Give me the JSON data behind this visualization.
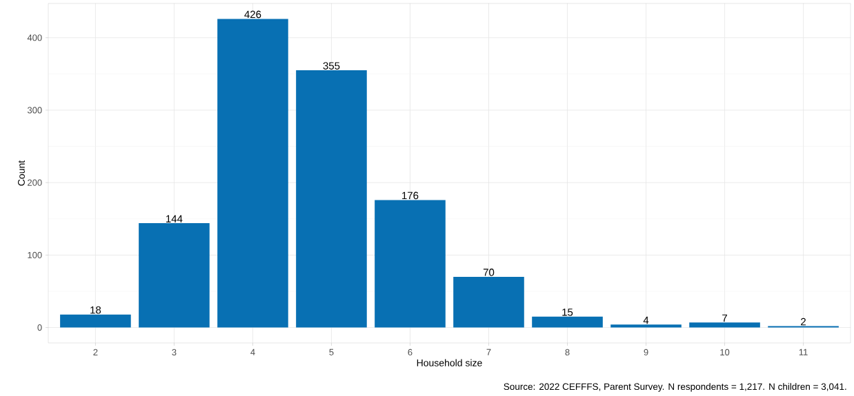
{
  "chart_data": {
    "type": "bar",
    "xlabel": "Household size",
    "ylabel": "Count",
    "categories": [
      "2",
      "3",
      "4",
      "5",
      "6",
      "7",
      "8",
      "9",
      "10",
      "11"
    ],
    "values": [
      18,
      144,
      426,
      355,
      176,
      70,
      15,
      4,
      7,
      2
    ],
    "color": "#0870b3",
    "ylim": [
      -21.3,
      447.3
    ],
    "yticks": [
      0,
      100,
      200,
      300,
      400
    ],
    "grid": true,
    "data_labels": true,
    "annotations": [
      "Source: 2022 CEFFFS, Parent Survey. N respondents = 1,217. N children = 3,041."
    ]
  }
}
